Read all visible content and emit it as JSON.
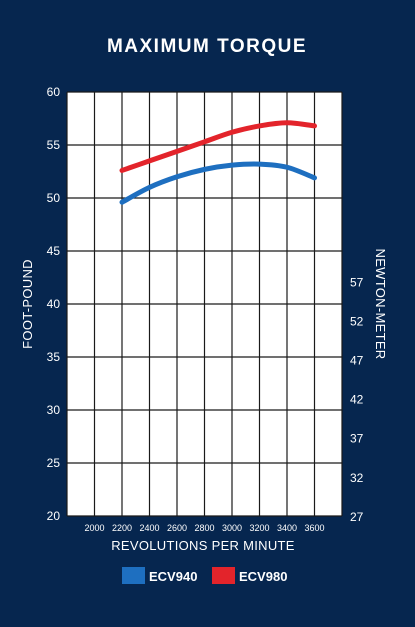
{
  "chart_data": {
    "type": "line",
    "title": "MAXIMUM TORQUE",
    "xlabel": "REVOLUTIONS PER MINUTE",
    "ylabel": "FOOT-POUND",
    "y2label": "NEWTON-METER",
    "xlim": [
      1800,
      3800
    ],
    "ylim": [
      20,
      60
    ],
    "x_ticks": [
      2000,
      2200,
      2400,
      2600,
      2800,
      3000,
      3200,
      3400,
      3600
    ],
    "y_ticks": [
      20,
      25,
      30,
      35,
      40,
      45,
      50,
      55,
      60
    ],
    "y2_ticks": [
      27,
      32,
      37,
      42,
      47,
      52,
      57
    ],
    "grid": true,
    "legend_position": "bottom",
    "series": [
      {
        "name": "ECV940",
        "color": "#1e6fc0",
        "x": [
          2200,
          2400,
          2600,
          2800,
          3000,
          3200,
          3400,
          3600
        ],
        "values": [
          49.6,
          51.0,
          52.0,
          52.7,
          53.1,
          53.2,
          52.9,
          51.9
        ]
      },
      {
        "name": "ECV980",
        "color": "#e3242b",
        "x": [
          2200,
          2400,
          2600,
          2800,
          3000,
          3200,
          3400,
          3600
        ],
        "values": [
          52.6,
          53.5,
          54.4,
          55.3,
          56.2,
          56.8,
          57.1,
          56.8
        ]
      }
    ]
  }
}
